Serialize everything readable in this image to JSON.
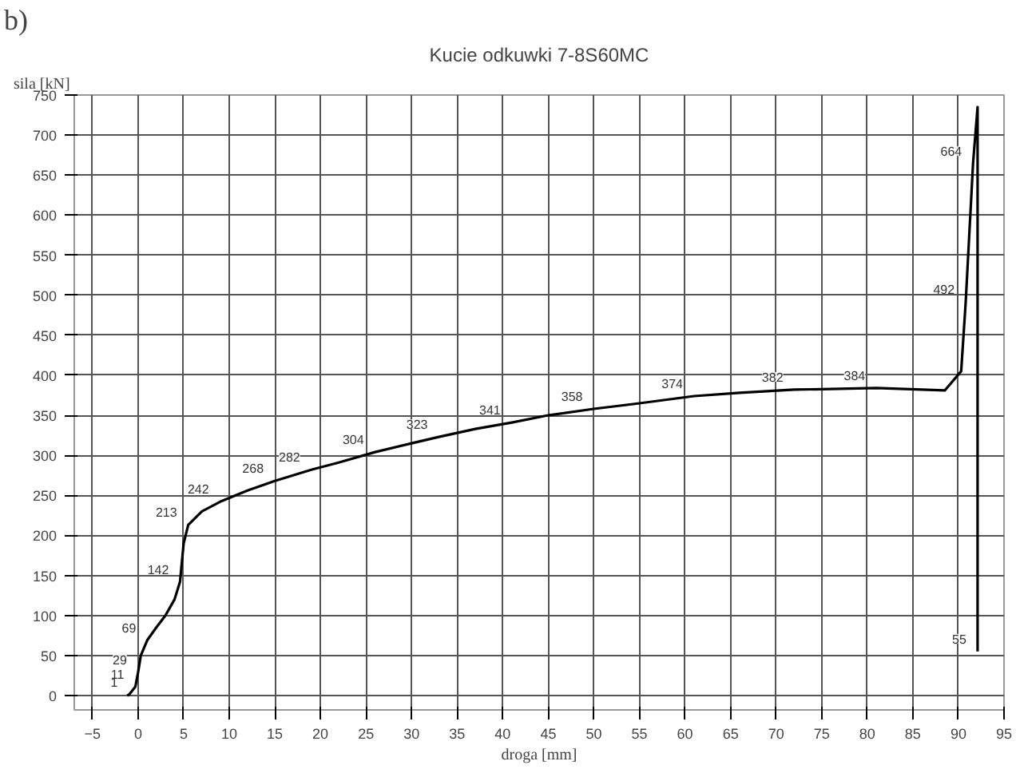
{
  "chart_data": {
    "type": "line",
    "title": "Kucie odkuwki 7-8S60MC",
    "xlabel": "droga [mm]",
    "ylabel": "sila [kN]",
    "x": [
      -1.2,
      -1,
      -0.3,
      0,
      0.3,
      1,
      2,
      3,
      4,
      4.6,
      5,
      5.5,
      7,
      9,
      12,
      15,
      19,
      22,
      26,
      30,
      33,
      37,
      41,
      45,
      50,
      55,
      61,
      66,
      72,
      81,
      88.5,
      90.3,
      90.8,
      91.6,
      92.1,
      92.1
    ],
    "series": [
      {
        "color": "#000000",
        "values": [
          0,
          1,
          11,
          29,
          50,
          69,
          85,
          100,
          120,
          142,
          190,
          213,
          230,
          242,
          256,
          268,
          282,
          291,
          304,
          315,
          323,
          333,
          341,
          350,
          358,
          365,
          374,
          378,
          382,
          384,
          381,
          405,
          492,
          664,
          735,
          55
        ],
        "value_labels": [
          null,
          "1",
          "11",
          "29",
          null,
          "69",
          null,
          null,
          null,
          "142",
          null,
          "213",
          null,
          "242",
          null,
          "268",
          "282",
          null,
          "304",
          null,
          "323",
          null,
          "341",
          null,
          "358",
          null,
          "374",
          null,
          "382",
          "384",
          null,
          null,
          "492",
          "664",
          null,
          "55"
        ]
      }
    ],
    "xlim": [
      -7,
      95
    ],
    "ylim": [
      -18,
      750
    ],
    "xticks": [
      -5,
      0,
      5,
      10,
      15,
      20,
      25,
      30,
      35,
      40,
      45,
      50,
      55,
      60,
      65,
      70,
      75,
      80,
      85,
      90,
      95
    ],
    "yticks": [
      0,
      50,
      100,
      150,
      200,
      250,
      300,
      350,
      400,
      450,
      500,
      550,
      600,
      650,
      700,
      750
    ],
    "grid": true,
    "marker": "none",
    "line_style": "solid",
    "annotations": [
      "b)"
    ]
  }
}
